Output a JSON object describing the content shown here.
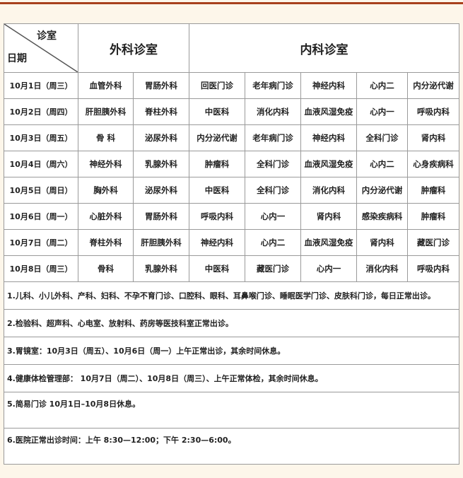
{
  "header": {
    "corner_top": "诊室",
    "corner_bottom": "日期",
    "surgery": "外科诊室",
    "internal": "内科诊室"
  },
  "rows": [
    {
      "date": "10月1日（周三）",
      "cells": [
        "血管外科",
        "胃肠外科",
        "回医门诊",
        "老年病门诊",
        "神经内科",
        "心内二",
        "内分泌代谢"
      ]
    },
    {
      "date": "10月2日（周四）",
      "cells": [
        "肝胆胰外科",
        "脊柱外科",
        "中医科",
        "消化内科",
        "血液风湿免疫",
        "心内一",
        "呼吸内科"
      ]
    },
    {
      "date": "10月3日（周五）",
      "cells": [
        "骨 科",
        "泌尿外科",
        "内分泌代谢",
        "老年病门诊",
        "神经内科",
        "全科门诊",
        "肾内科"
      ]
    },
    {
      "date": "10月4日（周六）",
      "cells": [
        "神经外科",
        "乳腺外科",
        "肿瘤科",
        "全科门诊",
        "血液风湿免疫",
        "心内二",
        "心身疾病科"
      ]
    },
    {
      "date": "10月5日（周日）",
      "cells": [
        "胸外科",
        "泌尿外科",
        "中医科",
        "全科门诊",
        "消化内科",
        "内分泌代谢",
        "肿瘤科"
      ]
    },
    {
      "date": "10月6日（周一）",
      "cells": [
        "心脏外科",
        "胃肠外科",
        "呼吸内科",
        "心内一",
        "肾内科",
        "感染疾病科",
        "肿瘤科"
      ]
    },
    {
      "date": "10月7日（周二）",
      "cells": [
        "脊柱外科",
        "肝胆胰外科",
        "神经内科",
        "心内二",
        "血液风湿免疫",
        "肾内科",
        "藏医门诊"
      ]
    },
    {
      "date": "10月8日（周三）",
      "cells": [
        "骨科",
        "乳腺外科",
        "中医科",
        "藏医门诊",
        "心内一",
        "消化内科",
        "呼吸内科"
      ]
    }
  ],
  "notes": [
    "1.儿科、小儿外科、产科、妇科、不孕不育门诊、口腔科、眼科、耳鼻喉门诊、睡眠医学门诊、皮肤科门诊，每日正常出诊。",
    "2.检验科、超声科、心电室、放射科、药房等医技科室正常出诊。",
    "3.胃镜室：10月3日（周五）、10月6日（周一）上午正常出诊，其余时间休息。",
    "4.健康体检管理部： 10月7日（周二）、10月8日（周三）、上午正常体检，其余时间休息。",
    "5.简易门诊 10月1日–10月8日休息。",
    "6.医院正常出诊时间：上午 8:30—12:00；下午 2:30—6:00。"
  ],
  "colors": {
    "accent_line": "#a8401c",
    "background": "#fdf6ea"
  }
}
